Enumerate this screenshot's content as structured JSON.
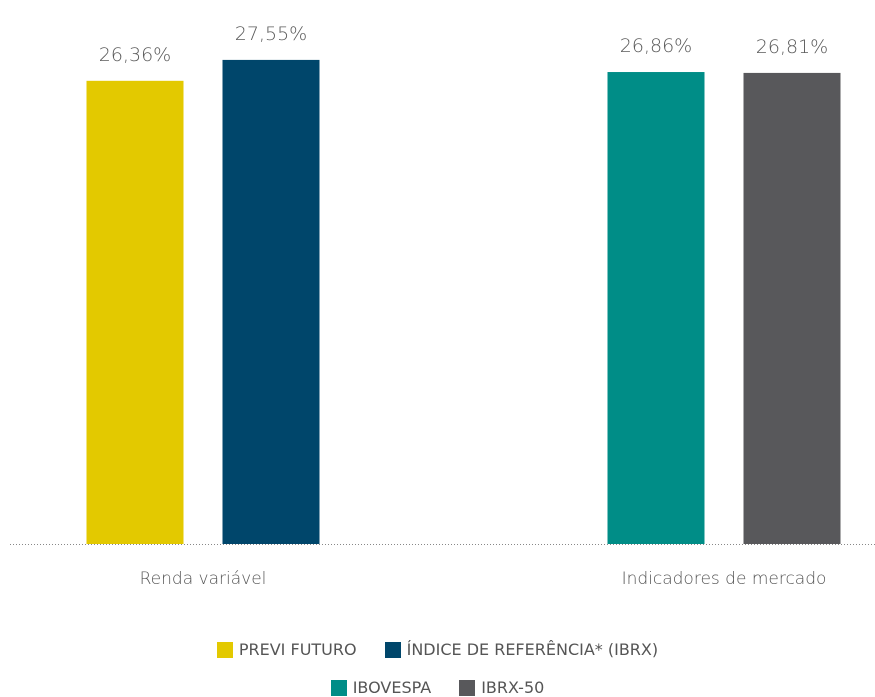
{
  "chart_data": {
    "type": "bar",
    "categories": [
      "Renda variável",
      "Indicadores de mercado"
    ],
    "series": [
      {
        "name": "PREVI FUTURO",
        "color": "#e3c900",
        "values": [
          26.36,
          null
        ],
        "value_labels": [
          "26,36%",
          null
        ]
      },
      {
        "name": "ÍNDICE DE REFERÊNCIA* (IBRX)",
        "color": "#00466b",
        "values": [
          27.55,
          null
        ],
        "value_labels": [
          "27,55%",
          null
        ]
      },
      {
        "name": "IBOVESPA",
        "color": "#008d87",
        "values": [
          null,
          26.86
        ],
        "value_labels": [
          null,
          "26,86%"
        ]
      },
      {
        "name": "IBRX-50",
        "color": "#58585b",
        "values": [
          null,
          26.81
        ],
        "value_labels": [
          null,
          "26,81%"
        ]
      }
    ],
    "ylim": [
      0,
      28
    ]
  }
}
